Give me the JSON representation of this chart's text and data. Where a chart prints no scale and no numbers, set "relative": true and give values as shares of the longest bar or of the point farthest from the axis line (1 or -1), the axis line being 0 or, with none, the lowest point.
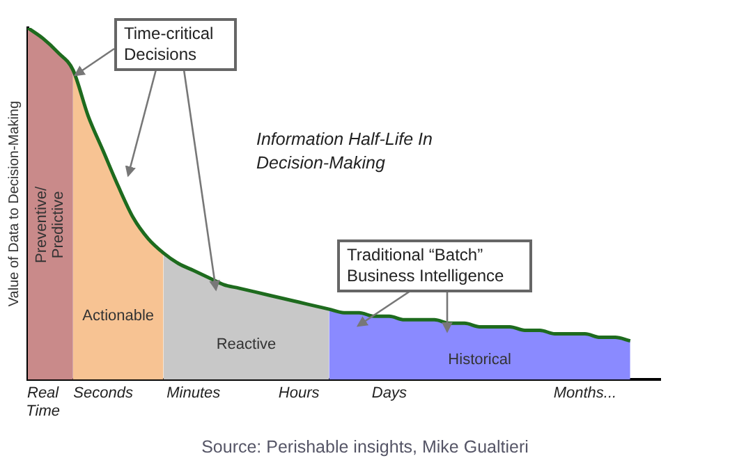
{
  "chart_data": {
    "type": "area",
    "relative": true,
    "ylabel": "Value of Data to Decision-Making",
    "categories": [
      null,
      "Real Time",
      null,
      null,
      null,
      "Seconds",
      null,
      null,
      null,
      null,
      null,
      "Minutes",
      null,
      null,
      null,
      null,
      null,
      null,
      "Hours",
      null,
      null,
      null,
      null,
      null,
      "Days",
      null,
      null,
      null,
      null,
      null,
      null,
      null,
      null,
      null,
      null,
      null,
      null,
      "Months...",
      null,
      null,
      null,
      null,
      null
    ],
    "series": [
      {
        "name": "Preventive/Predictive",
        "color": "#c98a8a",
        "values": [
          1.0,
          0.97,
          0.93,
          0.88,
          null,
          null,
          null,
          null,
          null,
          null,
          null,
          null,
          null,
          null,
          null,
          null,
          null,
          null,
          null,
          null,
          null,
          null,
          null,
          null,
          null,
          null,
          null,
          null,
          null,
          null,
          null,
          null,
          null,
          null,
          null,
          null,
          null,
          null,
          null,
          null,
          null,
          null,
          null
        ]
      },
      {
        "name": "Actionable",
        "color": "#f7c393",
        "values": [
          null,
          null,
          null,
          0.88,
          0.75,
          0.65,
          0.55,
          0.46,
          0.4,
          0.36,
          null,
          null,
          null,
          null,
          null,
          null,
          null,
          null,
          null,
          null,
          null,
          null,
          null,
          null,
          null,
          null,
          null,
          null,
          null,
          null,
          null,
          null,
          null,
          null,
          null,
          null,
          null,
          null,
          null,
          null,
          null,
          null,
          null
        ]
      },
      {
        "name": "Reactive",
        "color": "#c8c8c8",
        "values": [
          null,
          null,
          null,
          null,
          null,
          null,
          null,
          null,
          null,
          0.36,
          0.33,
          0.31,
          0.29,
          0.27,
          0.26,
          0.25,
          0.24,
          0.23,
          0.22,
          0.21,
          0.2,
          null,
          null,
          null,
          null,
          null,
          null,
          null,
          null,
          null,
          null,
          null,
          null,
          null,
          null,
          null,
          null,
          null,
          null,
          null,
          null,
          null,
          null
        ]
      },
      {
        "name": "Historical",
        "color": "#8a8aff",
        "values": [
          null,
          null,
          null,
          null,
          null,
          null,
          null,
          null,
          null,
          null,
          null,
          null,
          null,
          null,
          null,
          null,
          null,
          null,
          null,
          null,
          0.2,
          0.19,
          0.19,
          0.18,
          0.18,
          0.17,
          0.17,
          0.17,
          0.16,
          0.16,
          0.15,
          0.15,
          0.15,
          0.14,
          0.14,
          0.13,
          0.13,
          0.13,
          0.12,
          0.12,
          0.11,
          null,
          null
        ]
      },
      {
        "type": "line",
        "color": "#1e6b1e",
        "values": [
          1.0,
          0.97,
          0.93,
          0.88,
          0.75,
          0.65,
          0.55,
          0.46,
          0.4,
          0.36,
          0.33,
          0.31,
          0.29,
          0.27,
          0.26,
          0.25,
          0.24,
          0.23,
          0.22,
          0.21,
          0.2,
          0.19,
          0.19,
          0.18,
          0.18,
          0.17,
          0.17,
          0.17,
          0.16,
          0.16,
          0.15,
          0.15,
          0.15,
          0.14,
          0.14,
          0.13,
          0.13,
          0.13,
          0.12,
          0.12,
          0.11,
          null,
          null
        ]
      }
    ],
    "legend": false,
    "annotations": [
      "Time-critical Decisions",
      "Information Half-Life In Decision-Making",
      "Traditional “Batch” Business Intelligence",
      "Source: Perishable insights, Mike Gualtieri"
    ]
  }
}
